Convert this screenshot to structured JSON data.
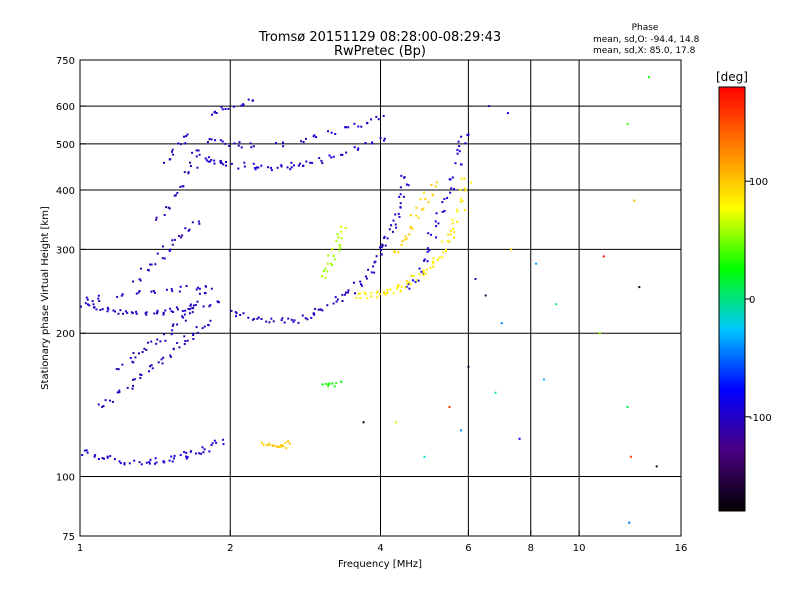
{
  "chart_data": {
    "type": "scatter",
    "title_line1": "Tromsø 20151129 08:28:00-08:29:43",
    "title_line2": "RwPretec (Bp)",
    "phase_header": "Phase",
    "phase_stats_o": "mean, sd,O: -94.4, 14.8",
    "phase_stats_x": "mean, sd,X:  85.0, 17.8",
    "xlabel": "Frequency [MHz]",
    "ylabel": "Stationary phase Virtual Height [km]",
    "x_scale": "log",
    "y_scale": "log",
    "xlim": [
      1,
      16
    ],
    "ylim": [
      75,
      750
    ],
    "x_ticks": [
      1,
      2,
      4,
      6,
      8,
      10,
      16
    ],
    "x_tick_labels": [
      "1",
      "2",
      "4",
      "6",
      "8",
      "10",
      "16"
    ],
    "x_grid": [
      2,
      4,
      6,
      8,
      10
    ],
    "y_ticks": [
      75,
      100,
      200,
      300,
      400,
      500,
      600,
      750
    ],
    "y_tick_labels": [
      "75",
      "100",
      "200",
      "300",
      "400",
      "500",
      "600",
      "750"
    ],
    "y_grid": [
      100,
      200,
      300,
      400,
      500,
      600
    ],
    "grid": true,
    "colorbar": {
      "label": "[deg]",
      "range": [
        -180,
        180
      ],
      "ticks": [
        100,
        0,
        -100
      ],
      "tick_labels": [
        "100",
        "0",
        "-100"
      ],
      "colors": [
        "#000000",
        "#4b0082",
        "#0000ff",
        "#00c8ff",
        "#00ff00",
        "#ffff00",
        "#ff8000",
        "#ff0000"
      ]
    },
    "series": [
      {
        "phase": -100,
        "points": [
          [
            1.02,
            230
          ],
          [
            1.05,
            228
          ],
          [
            1.08,
            226
          ],
          [
            1.12,
            224
          ],
          [
            1.15,
            222
          ],
          [
            1.2,
            221
          ],
          [
            1.25,
            220
          ],
          [
            1.3,
            220
          ],
          [
            1.35,
            220
          ],
          [
            1.4,
            221
          ],
          [
            1.45,
            222
          ],
          [
            1.5,
            223
          ],
          [
            1.55,
            224
          ],
          [
            1.6,
            225
          ],
          [
            1.65,
            226
          ],
          [
            1.7,
            227
          ],
          [
            1.8,
            228
          ],
          [
            1.9,
            230
          ],
          [
            1.05,
            235
          ],
          [
            1.1,
            237
          ],
          [
            1.2,
            240
          ],
          [
            1.3,
            242
          ],
          [
            1.4,
            244
          ],
          [
            1.5,
            246
          ],
          [
            1.6,
            248
          ],
          [
            1.7,
            250
          ]
        ]
      },
      {
        "phase": -95,
        "points": [
          [
            1.02,
            112
          ],
          [
            1.05,
            111
          ],
          [
            1.1,
            110
          ],
          [
            1.15,
            109
          ],
          [
            1.2,
            108
          ],
          [
            1.25,
            107
          ],
          [
            1.3,
            107
          ],
          [
            1.35,
            107
          ],
          [
            1.4,
            107
          ],
          [
            1.45,
            108
          ],
          [
            1.5,
            108
          ],
          [
            1.55,
            109
          ],
          [
            1.6,
            110
          ],
          [
            1.65,
            111
          ],
          [
            1.7,
            112
          ],
          [
            1.75,
            113
          ],
          [
            1.8,
            114
          ],
          [
            1.85,
            116
          ],
          [
            1.9,
            118
          ]
        ]
      },
      {
        "phase": -105,
        "points": [
          [
            1.1,
            140
          ],
          [
            1.15,
            145
          ],
          [
            1.2,
            150
          ],
          [
            1.25,
            155
          ],
          [
            1.3,
            160
          ],
          [
            1.35,
            165
          ],
          [
            1.4,
            170
          ],
          [
            1.45,
            175
          ],
          [
            1.5,
            180
          ],
          [
            1.55,
            185
          ],
          [
            1.6,
            190
          ],
          [
            1.65,
            195
          ],
          [
            1.7,
            200
          ],
          [
            1.75,
            205
          ],
          [
            1.8,
            210
          ],
          [
            1.2,
            170
          ],
          [
            1.25,
            175
          ],
          [
            1.3,
            180
          ],
          [
            1.35,
            185
          ],
          [
            1.4,
            190
          ],
          [
            1.45,
            195
          ],
          [
            1.5,
            200
          ],
          [
            1.55,
            210
          ],
          [
            1.6,
            215
          ],
          [
            1.65,
            220
          ],
          [
            1.7,
            230
          ],
          [
            1.75,
            240
          ],
          [
            1.8,
            250
          ],
          [
            1.3,
            260
          ],
          [
            1.35,
            270
          ],
          [
            1.4,
            280
          ],
          [
            1.45,
            290
          ],
          [
            1.5,
            300
          ],
          [
            1.55,
            310
          ],
          [
            1.6,
            320
          ],
          [
            1.65,
            330
          ],
          [
            1.7,
            340
          ],
          [
            1.45,
            350
          ],
          [
            1.5,
            370
          ],
          [
            1.55,
            390
          ],
          [
            1.6,
            410
          ],
          [
            1.65,
            430
          ],
          [
            1.7,
            450
          ],
          [
            1.5,
            460
          ],
          [
            1.55,
            480
          ],
          [
            1.6,
            500
          ],
          [
            1.65,
            520
          ]
        ]
      },
      {
        "phase": -98,
        "points": [
          [
            1.7,
            480
          ],
          [
            1.75,
            470
          ],
          [
            1.8,
            465
          ],
          [
            1.85,
            460
          ],
          [
            1.9,
            458
          ],
          [
            1.95,
            456
          ],
          [
            2.0,
            455
          ],
          [
            2.1,
            450
          ],
          [
            2.2,
            448
          ],
          [
            2.3,
            447
          ],
          [
            2.4,
            446
          ],
          [
            2.5,
            447
          ],
          [
            2.6,
            448
          ],
          [
            2.7,
            450
          ],
          [
            2.8,
            452
          ],
          [
            2.9,
            455
          ],
          [
            3.0,
            460
          ],
          [
            3.2,
            470
          ],
          [
            3.4,
            480
          ],
          [
            3.6,
            490
          ],
          [
            3.8,
            500
          ],
          [
            4.0,
            510
          ],
          [
            1.8,
            510
          ],
          [
            1.9,
            505
          ],
          [
            2.0,
            500
          ],
          [
            2.1,
            498
          ],
          [
            2.2,
            497
          ],
          [
            2.5,
            500
          ],
          [
            2.8,
            510
          ],
          [
            3.0,
            520
          ],
          [
            3.2,
            530
          ],
          [
            3.4,
            540
          ],
          [
            3.6,
            550
          ],
          [
            3.8,
            560
          ],
          [
            4.0,
            570
          ]
        ]
      },
      {
        "phase": -102,
        "points": [
          [
            2.05,
            220
          ],
          [
            2.1,
            218
          ],
          [
            2.2,
            215
          ],
          [
            2.3,
            213
          ],
          [
            2.4,
            212
          ],
          [
            2.5,
            212
          ],
          [
            2.6,
            212
          ],
          [
            2.7,
            213
          ],
          [
            2.8,
            215
          ],
          [
            2.9,
            218
          ],
          [
            3.0,
            222
          ],
          [
            3.1,
            226
          ],
          [
            3.2,
            230
          ],
          [
            3.3,
            235
          ],
          [
            3.4,
            240
          ],
          [
            3.5,
            246
          ],
          [
            3.6,
            252
          ],
          [
            3.7,
            260
          ],
          [
            3.8,
            270
          ],
          [
            3.9,
            280
          ],
          [
            4.0,
            292
          ],
          [
            4.05,
            300
          ],
          [
            4.1,
            310
          ],
          [
            4.15,
            320
          ],
          [
            4.2,
            330
          ],
          [
            4.25,
            340
          ],
          [
            4.3,
            355
          ],
          [
            4.35,
            370
          ],
          [
            4.4,
            390
          ],
          [
            4.45,
            410
          ],
          [
            4.5,
            430
          ]
        ]
      },
      {
        "phase": -92,
        "points": [
          [
            4.6,
            250
          ],
          [
            4.7,
            260
          ],
          [
            4.8,
            270
          ],
          [
            4.9,
            285
          ],
          [
            5.0,
            300
          ],
          [
            5.1,
            320
          ],
          [
            5.2,
            340
          ],
          [
            5.3,
            360
          ],
          [
            5.4,
            380
          ],
          [
            5.5,
            400
          ],
          [
            5.6,
            420
          ],
          [
            5.7,
            450
          ],
          [
            5.8,
            480
          ],
          [
            5.85,
            500
          ],
          [
            5.9,
            520
          ]
        ]
      },
      {
        "phase": 85,
        "points": [
          [
            3.6,
            240
          ],
          [
            3.7,
            240
          ],
          [
            3.8,
            240
          ],
          [
            3.9,
            241
          ],
          [
            4.0,
            242
          ],
          [
            4.1,
            244
          ],
          [
            4.2,
            246
          ],
          [
            4.3,
            248
          ],
          [
            4.4,
            250
          ],
          [
            4.5,
            253
          ],
          [
            4.6,
            256
          ],
          [
            4.7,
            260
          ],
          [
            4.8,
            265
          ],
          [
            4.9,
            270
          ],
          [
            5.0,
            276
          ],
          [
            5.1,
            282
          ],
          [
            5.2,
            290
          ],
          [
            5.3,
            298
          ],
          [
            5.4,
            308
          ],
          [
            5.5,
            318
          ],
          [
            5.6,
            330
          ],
          [
            5.7,
            345
          ],
          [
            5.8,
            360
          ],
          [
            5.85,
            380
          ],
          [
            5.9,
            400
          ],
          [
            5.95,
            420
          ]
        ]
      },
      {
        "phase": 95,
        "points": [
          [
            4.3,
            300
          ],
          [
            4.4,
            310
          ],
          [
            4.5,
            320
          ],
          [
            4.6,
            335
          ],
          [
            4.7,
            350
          ],
          [
            4.8,
            365
          ],
          [
            4.9,
            380
          ],
          [
            5.0,
            395
          ],
          [
            5.1,
            410
          ]
        ]
      },
      {
        "phase": 60,
        "points": [
          [
            3.05,
            260
          ],
          [
            3.1,
            270
          ],
          [
            3.15,
            280
          ],
          [
            3.2,
            290
          ],
          [
            3.25,
            300
          ],
          [
            3.3,
            310
          ],
          [
            3.35,
            320
          ],
          [
            3.4,
            330
          ]
        ]
      },
      {
        "phase": 100,
        "points": [
          [
            2.35,
            117
          ],
          [
            2.4,
            117
          ],
          [
            2.45,
            116
          ],
          [
            2.5,
            116
          ],
          [
            2.55,
            116
          ],
          [
            2.6,
            117
          ]
        ]
      },
      {
        "phase": 30,
        "points": [
          [
            3.1,
            155
          ],
          [
            3.2,
            155
          ],
          [
            3.3,
            156
          ]
        ]
      },
      {
        "phase": -100,
        "points": [
          [
            1.85,
            580
          ],
          [
            1.9,
            590
          ],
          [
            2.0,
            600
          ],
          [
            2.1,
            610
          ],
          [
            2.2,
            615
          ]
        ]
      }
    ],
    "sparse_points": [
      [
        6.2,
        260
      ],
      [
        6.5,
        240
      ],
      [
        7.0,
        210
      ],
      [
        7.3,
        300
      ],
      [
        6.0,
        170
      ],
      [
        6.8,
        150
      ],
      [
        7.6,
        120
      ],
      [
        8.2,
        280
      ],
      [
        9.0,
        230
      ],
      [
        11.2,
        290
      ],
      [
        12.5,
        140
      ],
      [
        13.2,
        250
      ],
      [
        14.3,
        105
      ],
      [
        12.6,
        80
      ],
      [
        12.5,
        550
      ],
      [
        6.6,
        600
      ],
      [
        7.2,
        580
      ],
      [
        5.5,
        140
      ],
      [
        5.8,
        125
      ],
      [
        4.3,
        130
      ],
      [
        3.7,
        130
      ],
      [
        4.9,
        110
      ],
      [
        8.5,
        160
      ],
      [
        11.0,
        200
      ],
      [
        12.9,
        380
      ],
      [
        12.7,
        110
      ],
      [
        13.8,
        690
      ]
    ]
  }
}
